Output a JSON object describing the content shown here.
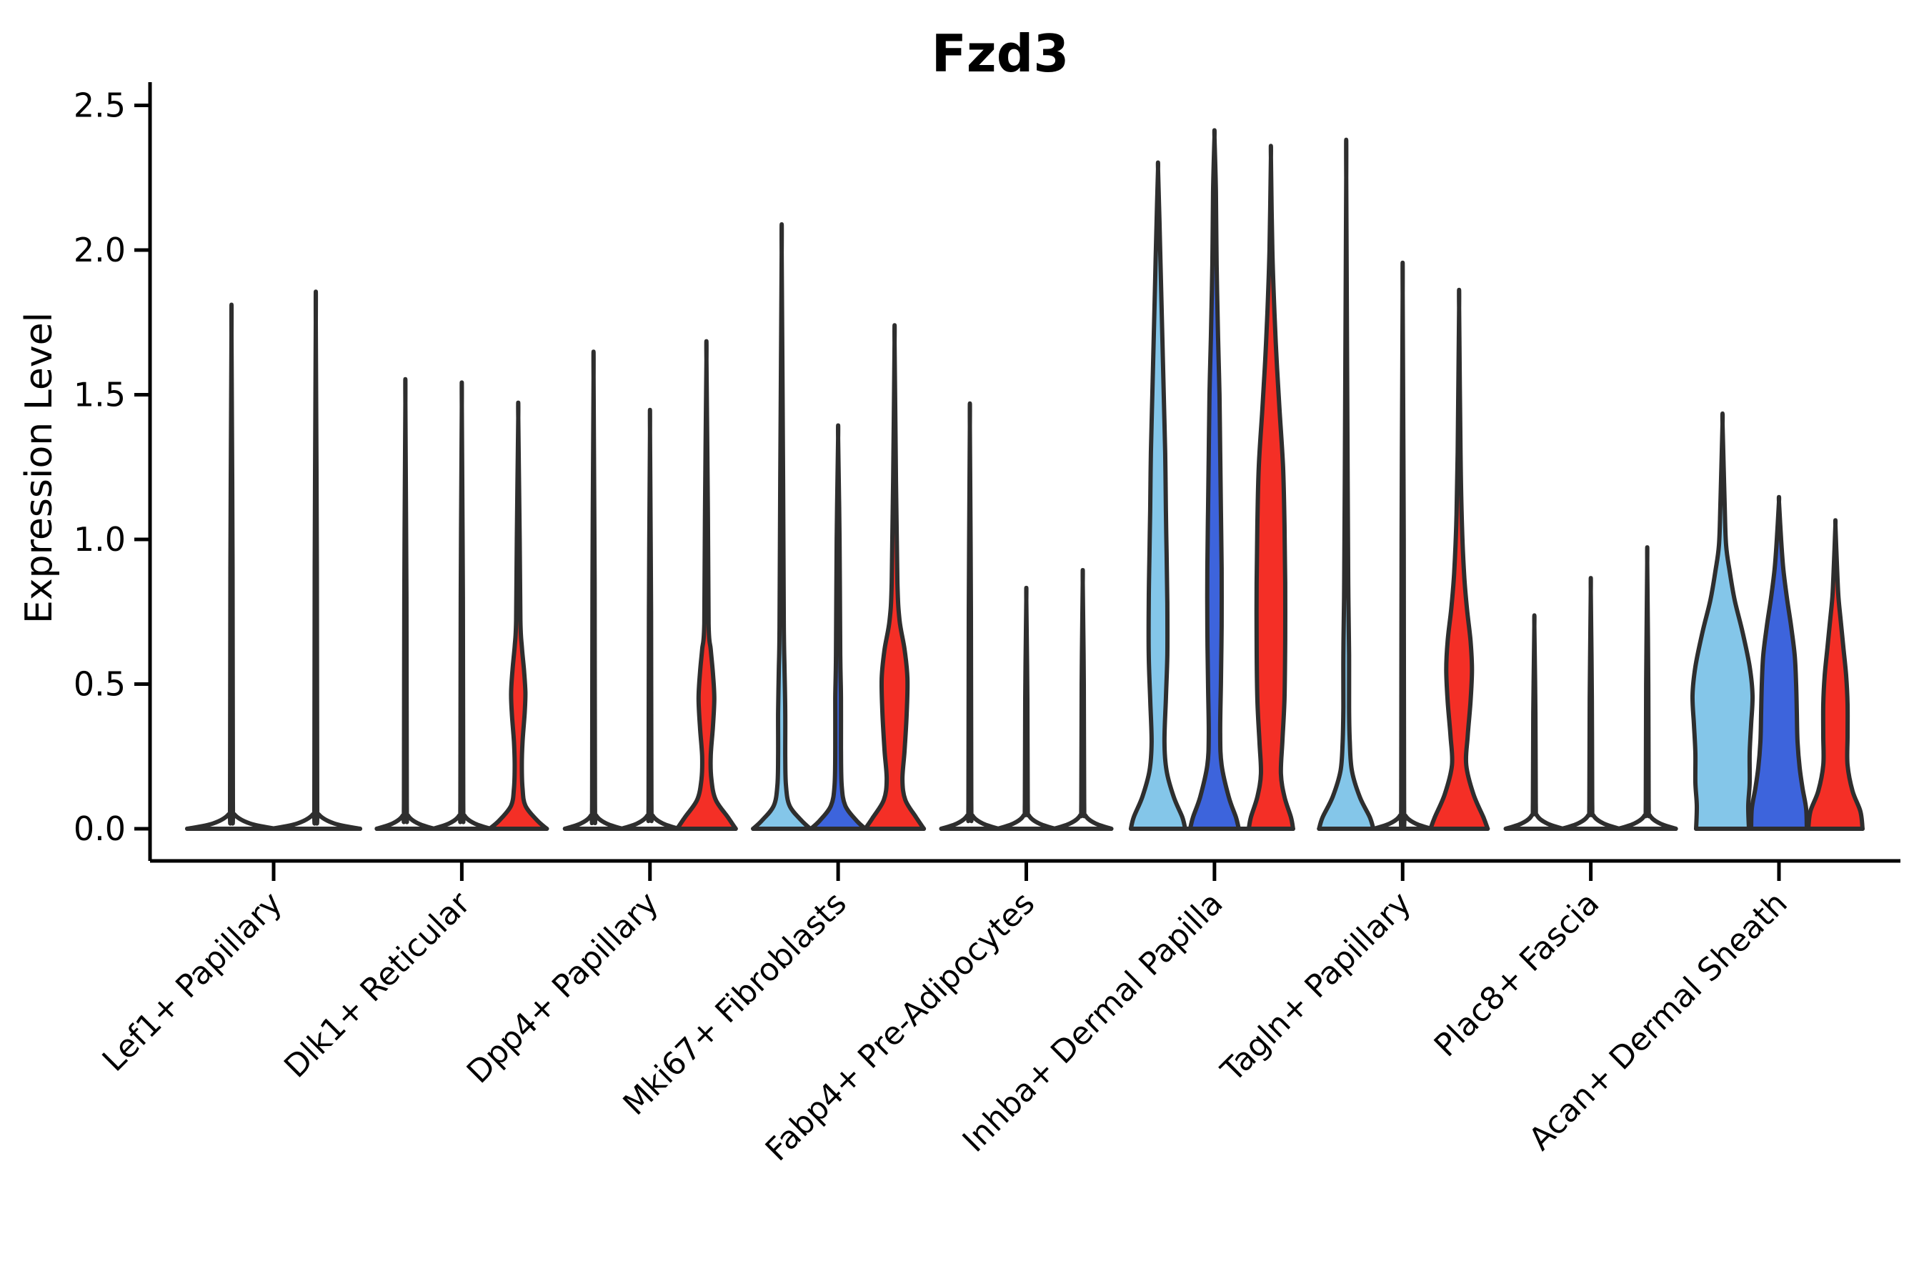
{
  "chart_data": {
    "type": "violin",
    "title": "Fzd3",
    "ylabel": "Expression Level",
    "xlabel": "",
    "ylim": [
      0,
      2.5
    ],
    "yticks": [
      {
        "value": 0.0,
        "label": "0.0"
      },
      {
        "value": 0.5,
        "label": "0.5"
      },
      {
        "value": 1.0,
        "label": "1.0"
      },
      {
        "value": 1.5,
        "label": "1.5"
      },
      {
        "value": 2.0,
        "label": "2.0"
      },
      {
        "value": 2.5,
        "label": "2.5"
      }
    ],
    "grid": false,
    "legend": "none",
    "categories": [
      "Lef1+ Papillary",
      "Dlk1+ Reticular",
      "Dpp4+ Papillary",
      "Mki67+ Fibroblasts",
      "Fabp4+ Pre-Adipocytes",
      "Inhba+ Dermal Papilla",
      "Tagln+ Papillary",
      "Plac8+ Fascia",
      "Acan+ Dermal Sheath"
    ],
    "palette": {
      "light_blue": "#84C6E9",
      "dark_blue": "#3D64DC",
      "red": "#F42F26",
      "outline": "#2E2E2E"
    },
    "violins": [
      {
        "category": 0,
        "slot": 0,
        "offset": -59,
        "base_halfwidth": 62,
        "color": "none",
        "max": 1.71,
        "profile": [
          [
            0,
            62
          ],
          [
            0.018,
            26
          ],
          [
            0.05,
            4
          ],
          [
            0.09,
            2
          ],
          [
            0.9,
            1.5
          ],
          [
            1.71,
            0
          ]
        ]
      },
      {
        "category": 0,
        "slot": 2,
        "offset": 59,
        "base_halfwidth": 62,
        "color": "none",
        "max": 1.75,
        "profile": [
          [
            0,
            62
          ],
          [
            0.018,
            26
          ],
          [
            0.05,
            4
          ],
          [
            0.09,
            2
          ],
          [
            0.9,
            1.5
          ],
          [
            1.75,
            0
          ]
        ]
      },
      {
        "category": 1,
        "slot": 0,
        "offset": -79,
        "base_halfwidth": 40,
        "color": "none",
        "max": 1.47,
        "profile": [
          [
            0,
            40
          ],
          [
            0.018,
            18
          ],
          [
            0.045,
            4
          ],
          [
            0.09,
            2
          ],
          [
            0.8,
            1.5
          ],
          [
            1.47,
            0
          ]
        ]
      },
      {
        "category": 1,
        "slot": 1,
        "offset": 0,
        "base_halfwidth": 40,
        "color": "none",
        "max": 1.46,
        "profile": [
          [
            0,
            40
          ],
          [
            0.018,
            18
          ],
          [
            0.045,
            4
          ],
          [
            0.09,
            2
          ],
          [
            0.8,
            1.5
          ],
          [
            1.46,
            0
          ]
        ]
      },
      {
        "category": 1,
        "slot": 2,
        "offset": 79,
        "base_halfwidth": 40,
        "color": "red",
        "max": 1.42,
        "profile": [
          [
            0,
            40
          ],
          [
            0.03,
            26
          ],
          [
            0.08,
            10
          ],
          [
            0.14,
            6
          ],
          [
            0.22,
            5
          ],
          [
            0.3,
            6
          ],
          [
            0.4,
            9
          ],
          [
            0.47,
            10
          ],
          [
            0.55,
            8
          ],
          [
            0.63,
            5
          ],
          [
            0.72,
            3
          ],
          [
            1.0,
            2
          ],
          [
            1.42,
            0
          ]
        ]
      },
      {
        "category": 2,
        "slot": 0,
        "offset": -79,
        "base_halfwidth": 40,
        "color": "none",
        "max": 1.56,
        "profile": [
          [
            0,
            40
          ],
          [
            0.018,
            18
          ],
          [
            0.045,
            4
          ],
          [
            0.09,
            2
          ],
          [
            0.85,
            1.5
          ],
          [
            1.56,
            0
          ]
        ]
      },
      {
        "category": 2,
        "slot": 1,
        "offset": 0,
        "base_halfwidth": 40,
        "color": "none",
        "max": 1.37,
        "profile": [
          [
            0,
            40
          ],
          [
            0.018,
            18
          ],
          [
            0.045,
            4
          ],
          [
            0.09,
            2
          ],
          [
            0.75,
            1.5
          ],
          [
            1.37,
            0
          ]
        ]
      },
      {
        "category": 2,
        "slot": 2,
        "offset": 79,
        "base_halfwidth": 41,
        "color": "red",
        "max": 1.62,
        "profile": [
          [
            0,
            41
          ],
          [
            0.04,
            30
          ],
          [
            0.1,
            13
          ],
          [
            0.17,
            7
          ],
          [
            0.25,
            6
          ],
          [
            0.35,
            9
          ],
          [
            0.45,
            11
          ],
          [
            0.54,
            9
          ],
          [
            0.62,
            6
          ],
          [
            0.71,
            3
          ],
          [
            1.1,
            2
          ],
          [
            1.62,
            0
          ]
        ]
      },
      {
        "category": 3,
        "slot": 0,
        "offset": -79,
        "base_halfwidth": 40,
        "color": "light_blue",
        "max": 1.99,
        "profile": [
          [
            0,
            40
          ],
          [
            0.03,
            27
          ],
          [
            0.08,
            11
          ],
          [
            0.15,
            6
          ],
          [
            0.25,
            5
          ],
          [
            0.4,
            5
          ],
          [
            0.55,
            4
          ],
          [
            0.7,
            3
          ],
          [
            1.2,
            2
          ],
          [
            1.99,
            0
          ]
        ]
      },
      {
        "category": 3,
        "slot": 1,
        "offset": 0,
        "base_halfwidth": 38,
        "color": "dark_blue",
        "max": 1.35,
        "profile": [
          [
            0,
            38
          ],
          [
            0.03,
            25
          ],
          [
            0.08,
            10
          ],
          [
            0.15,
            5
          ],
          [
            0.28,
            4
          ],
          [
            0.45,
            4
          ],
          [
            0.6,
            3
          ],
          [
            1.0,
            2
          ],
          [
            1.35,
            0
          ]
        ]
      },
      {
        "category": 3,
        "slot": 2,
        "offset": 79,
        "base_halfwidth": 41,
        "color": "red",
        "max": 1.68,
        "profile": [
          [
            0,
            41
          ],
          [
            0.04,
            30
          ],
          [
            0.1,
            15
          ],
          [
            0.17,
            11
          ],
          [
            0.27,
            14
          ],
          [
            0.4,
            17
          ],
          [
            0.52,
            18
          ],
          [
            0.62,
            14
          ],
          [
            0.72,
            7
          ],
          [
            0.85,
            4
          ],
          [
            1.2,
            2
          ],
          [
            1.68,
            0
          ]
        ]
      },
      {
        "category": 4,
        "slot": 0,
        "offset": -79,
        "base_halfwidth": 40,
        "color": "none",
        "max": 1.39,
        "profile": [
          [
            0,
            40
          ],
          [
            0.018,
            18
          ],
          [
            0.045,
            4
          ],
          [
            0.09,
            2
          ],
          [
            0.75,
            1.5
          ],
          [
            1.39,
            0
          ]
        ]
      },
      {
        "category": 4,
        "slot": 1,
        "offset": 0,
        "base_halfwidth": 40,
        "color": "none",
        "max": 0.79,
        "profile": [
          [
            0,
            40
          ],
          [
            0.018,
            18
          ],
          [
            0.045,
            4
          ],
          [
            0.09,
            2
          ],
          [
            0.45,
            1.5
          ],
          [
            0.79,
            0
          ]
        ]
      },
      {
        "category": 4,
        "slot": 2,
        "offset": 79,
        "base_halfwidth": 40,
        "color": "none",
        "max": 0.85,
        "profile": [
          [
            0,
            40
          ],
          [
            0.018,
            18
          ],
          [
            0.045,
            4
          ],
          [
            0.09,
            2
          ],
          [
            0.5,
            1.5
          ],
          [
            0.85,
            0
          ]
        ]
      },
      {
        "category": 5,
        "slot": 0,
        "offset": -79,
        "base_halfwidth": 38,
        "color": "light_blue",
        "max": 2.28,
        "profile": [
          [
            0,
            38
          ],
          [
            0.04,
            34
          ],
          [
            0.11,
            22
          ],
          [
            0.2,
            12
          ],
          [
            0.3,
            9
          ],
          [
            0.45,
            11
          ],
          [
            0.6,
            13
          ],
          [
            0.78,
            13
          ],
          [
            0.95,
            12
          ],
          [
            1.1,
            11
          ],
          [
            1.3,
            10
          ],
          [
            1.5,
            8
          ],
          [
            1.7,
            6
          ],
          [
            1.9,
            4
          ],
          [
            2.1,
            2
          ],
          [
            2.28,
            0
          ]
        ]
      },
      {
        "category": 5,
        "slot": 1,
        "offset": 0,
        "base_halfwidth": 34,
        "color": "dark_blue",
        "max": 2.39,
        "profile": [
          [
            0,
            34
          ],
          [
            0.04,
            30
          ],
          [
            0.11,
            20
          ],
          [
            0.22,
            10
          ],
          [
            0.33,
            8
          ],
          [
            0.5,
            9
          ],
          [
            0.7,
            10
          ],
          [
            0.9,
            10
          ],
          [
            1.1,
            9
          ],
          [
            1.3,
            8
          ],
          [
            1.5,
            7
          ],
          [
            1.7,
            5
          ],
          [
            1.95,
            3
          ],
          [
            2.2,
            2
          ],
          [
            2.39,
            0
          ]
        ]
      },
      {
        "category": 5,
        "slot": 2,
        "offset": 79,
        "base_halfwidth": 31,
        "color": "red",
        "max": 2.32,
        "profile": [
          [
            0,
            31
          ],
          [
            0.04,
            28
          ],
          [
            0.11,
            19
          ],
          [
            0.19,
            14
          ],
          [
            0.3,
            16
          ],
          [
            0.45,
            19
          ],
          [
            0.65,
            20
          ],
          [
            0.85,
            20
          ],
          [
            1.05,
            19
          ],
          [
            1.25,
            17
          ],
          [
            1.45,
            12
          ],
          [
            1.62,
            8
          ],
          [
            1.78,
            5
          ],
          [
            2.0,
            2
          ],
          [
            2.32,
            0
          ]
        ]
      },
      {
        "category": 6,
        "slot": 0,
        "offset": -79,
        "base_halfwidth": 38,
        "color": "light_blue",
        "max": 2.25,
        "profile": [
          [
            0,
            38
          ],
          [
            0.04,
            33
          ],
          [
            0.11,
            19
          ],
          [
            0.2,
            8
          ],
          [
            0.3,
            5
          ],
          [
            0.42,
            4
          ],
          [
            0.6,
            4
          ],
          [
            0.8,
            3
          ],
          [
            1.2,
            2
          ],
          [
            2.25,
            0
          ]
        ]
      },
      {
        "category": 6,
        "slot": 1,
        "offset": 0,
        "base_halfwidth": 40,
        "color": "none",
        "max": 1.85,
        "profile": [
          [
            0,
            40
          ],
          [
            0.018,
            18
          ],
          [
            0.045,
            4
          ],
          [
            0.09,
            2
          ],
          [
            1.0,
            1.5
          ],
          [
            1.85,
            0
          ]
        ]
      },
      {
        "category": 6,
        "slot": 2,
        "offset": 79,
        "base_halfwidth": 40,
        "color": "red",
        "max": 1.8,
        "profile": [
          [
            0,
            40
          ],
          [
            0.04,
            34
          ],
          [
            0.12,
            20
          ],
          [
            0.22,
            10
          ],
          [
            0.32,
            12
          ],
          [
            0.44,
            16
          ],
          [
            0.55,
            18
          ],
          [
            0.65,
            16
          ],
          [
            0.76,
            11
          ],
          [
            0.88,
            7
          ],
          [
            1.05,
            4
          ],
          [
            1.3,
            2
          ],
          [
            1.8,
            0
          ]
        ]
      },
      {
        "category": 7,
        "slot": 0,
        "offset": -79,
        "base_halfwidth": 40,
        "color": "none",
        "max": 0.7,
        "profile": [
          [
            0,
            40
          ],
          [
            0.018,
            18
          ],
          [
            0.045,
            4
          ],
          [
            0.09,
            2
          ],
          [
            0.4,
            1.5
          ],
          [
            0.7,
            0
          ]
        ]
      },
      {
        "category": 7,
        "slot": 1,
        "offset": 0,
        "base_halfwidth": 40,
        "color": "none",
        "max": 0.82,
        "profile": [
          [
            0,
            40
          ],
          [
            0.018,
            18
          ],
          [
            0.045,
            4
          ],
          [
            0.09,
            2
          ],
          [
            0.45,
            1.5
          ],
          [
            0.82,
            0
          ]
        ]
      },
      {
        "category": 7,
        "slot": 2,
        "offset": 79,
        "base_halfwidth": 40,
        "color": "none",
        "max": 0.92,
        "profile": [
          [
            0,
            40
          ],
          [
            0.018,
            18
          ],
          [
            0.045,
            4
          ],
          [
            0.09,
            2
          ],
          [
            0.5,
            1.5
          ],
          [
            0.92,
            0
          ]
        ]
      },
      {
        "category": 8,
        "slot": 0,
        "offset": -79,
        "base_halfwidth": 37,
        "color": "light_blue",
        "max": 1.4,
        "profile": [
          [
            0,
            37
          ],
          [
            0.08,
            36
          ],
          [
            0.16,
            38
          ],
          [
            0.26,
            38
          ],
          [
            0.36,
            40
          ],
          [
            0.46,
            42
          ],
          [
            0.56,
            38
          ],
          [
            0.68,
            28
          ],
          [
            0.79,
            17
          ],
          [
            0.89,
            10
          ],
          [
            0.98,
            5
          ],
          [
            1.12,
            3
          ],
          [
            1.4,
            0
          ]
        ]
      },
      {
        "category": 8,
        "slot": 1,
        "offset": 0,
        "base_halfwidth": 39,
        "color": "dark_blue",
        "max": 1.13,
        "profile": [
          [
            0,
            39
          ],
          [
            0.07,
            38
          ],
          [
            0.14,
            33
          ],
          [
            0.21,
            29
          ],
          [
            0.3,
            26
          ],
          [
            0.4,
            25
          ],
          [
            0.5,
            24
          ],
          [
            0.6,
            22
          ],
          [
            0.7,
            17
          ],
          [
            0.8,
            11
          ],
          [
            0.9,
            6
          ],
          [
            1.0,
            3
          ],
          [
            1.13,
            0
          ]
        ]
      },
      {
        "category": 8,
        "slot": 2,
        "offset": 79,
        "base_halfwidth": 38,
        "color": "red",
        "max": 1.05,
        "profile": [
          [
            0,
            38
          ],
          [
            0.06,
            35
          ],
          [
            0.13,
            24
          ],
          [
            0.22,
            17
          ],
          [
            0.32,
            17
          ],
          [
            0.43,
            17
          ],
          [
            0.53,
            15
          ],
          [
            0.63,
            11
          ],
          [
            0.73,
            7
          ],
          [
            0.81,
            4
          ],
          [
            0.92,
            2
          ],
          [
            1.05,
            0
          ]
        ]
      }
    ]
  }
}
